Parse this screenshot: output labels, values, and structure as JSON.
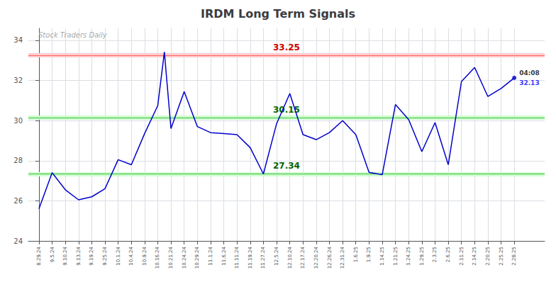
{
  "chart_data": {
    "type": "line",
    "title": "IRDM Long Term Signals",
    "x": [
      0,
      1,
      2,
      3,
      4,
      5,
      6,
      7,
      8,
      9,
      9.5,
      10,
      11,
      12,
      13,
      14,
      15,
      16,
      17,
      18,
      19,
      20,
      21,
      22,
      23,
      24,
      25,
      26,
      27,
      28,
      29,
      30,
      31,
      32,
      33,
      34,
      35,
      36
    ],
    "values": [
      25.6,
      27.4,
      26.55,
      26.05,
      26.2,
      26.6,
      28.05,
      27.8,
      29.35,
      30.75,
      33.42,
      29.6,
      31.45,
      29.7,
      29.4,
      29.35,
      29.3,
      28.65,
      27.34,
      29.85,
      31.35,
      29.3,
      29.05,
      29.4,
      30.0,
      29.3,
      27.42,
      27.3,
      30.8,
      30.05,
      28.45,
      29.9,
      27.8,
      31.95,
      32.65,
      31.2,
      31.6,
      32.13
    ],
    "color": "#0000cc",
    "xlim": [
      -0.8,
      38.3
    ],
    "xticks": [
      {
        "value": 0,
        "label": "8.29.24"
      },
      {
        "value": 1,
        "label": "9.5.24"
      },
      {
        "value": 2,
        "label": "9.10.24"
      },
      {
        "value": 3,
        "label": "9.13.24"
      },
      {
        "value": 4,
        "label": "9.19.24"
      },
      {
        "value": 5,
        "label": "9.25.24"
      },
      {
        "value": 6,
        "label": "10.1.24"
      },
      {
        "value": 7,
        "label": "10.4.24"
      },
      {
        "value": 8,
        "label": "10.9.24"
      },
      {
        "value": 9,
        "label": "10.16.24"
      },
      {
        "value": 10,
        "label": "10.21.24"
      },
      {
        "value": 11,
        "label": "10.24.24"
      },
      {
        "value": 12,
        "label": "10.29.24"
      },
      {
        "value": 13,
        "label": "11.1.24"
      },
      {
        "value": 14,
        "label": "11.6.24"
      },
      {
        "value": 15,
        "label": "11.11.24"
      },
      {
        "value": 16,
        "label": "11.19.24"
      },
      {
        "value": 17,
        "label": "11.27.24"
      },
      {
        "value": 18,
        "label": "12.5.24"
      },
      {
        "value": 19,
        "label": "12.10.24"
      },
      {
        "value": 20,
        "label": "12.17.24"
      },
      {
        "value": 21,
        "label": "12.20.24"
      },
      {
        "value": 22,
        "label": "12.26.24"
      },
      {
        "value": 23,
        "label": "12.31.24"
      },
      {
        "value": 24,
        "label": "1.6.25"
      },
      {
        "value": 25,
        "label": "1.9.25"
      },
      {
        "value": 26,
        "label": "1.14.25"
      },
      {
        "value": 27,
        "label": "1.21.25"
      },
      {
        "value": 28,
        "label": "1.24.25"
      },
      {
        "value": 29,
        "label": "1.29.25"
      },
      {
        "value": 30,
        "label": "2.3.25"
      },
      {
        "value": 31,
        "label": "2.6.25"
      },
      {
        "value": 32,
        "label": "2.11.25"
      },
      {
        "value": 33,
        "label": "2.14.25"
      },
      {
        "value": 34,
        "label": "2.20.25"
      },
      {
        "value": 35,
        "label": "2.25.25"
      },
      {
        "value": 36,
        "label": "2.28.25"
      }
    ],
    "ylim": [
      24.0,
      34.6
    ],
    "yticks": [
      24,
      26,
      28,
      30,
      32,
      34
    ],
    "grid": true,
    "hlines": [
      {
        "y": 33.25,
        "text": "33.25",
        "color": "#ff6666",
        "band_color": "#ffcccc",
        "text_color": "#cc0000"
      },
      {
        "y": 30.15,
        "text": "30.15",
        "color": "#44bb44",
        "band_color": "#ccffcc",
        "text_color": "#006600"
      },
      {
        "y": 27.34,
        "text": "27.34",
        "color": "#44bb44",
        "band_color": "#ccffcc",
        "text_color": "#006600"
      }
    ],
    "end_annotations": [
      {
        "text": "04:08",
        "color": "#000000"
      },
      {
        "text": "32.13",
        "color": "blue"
      }
    ],
    "watermark": {
      "text": "Stock Traders Daily",
      "color": "#aaaaaa"
    }
  }
}
